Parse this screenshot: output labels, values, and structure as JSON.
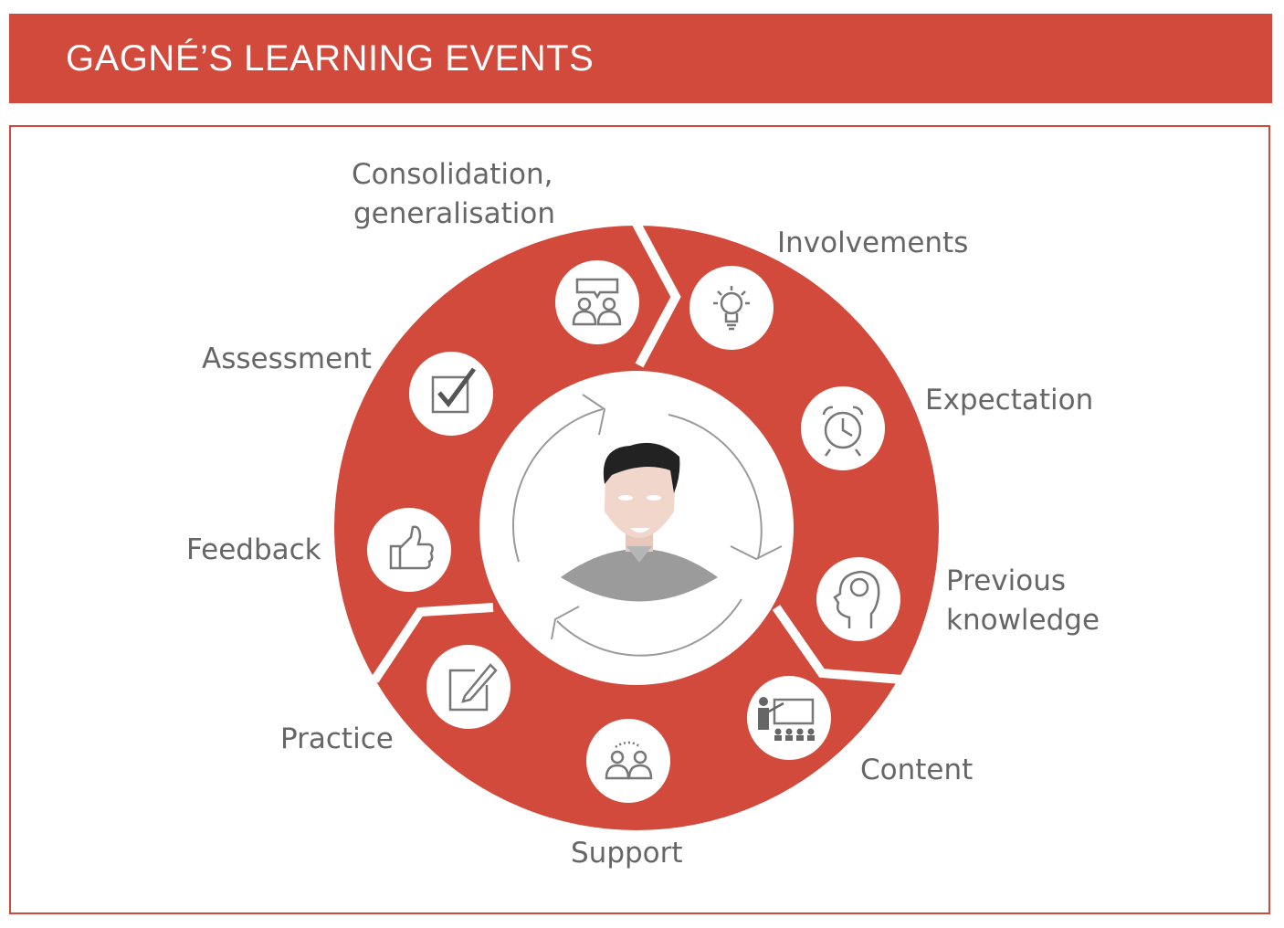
{
  "title": "GAGNÉ’S LEARNING EVENTS",
  "colors": {
    "accent": "#D24A3C",
    "label_text": "#666666",
    "icon": "#777777",
    "white": "#ffffff"
  },
  "events": [
    {
      "label": "Involvements",
      "icon": "lightbulb-icon"
    },
    {
      "label": "Expectation",
      "icon": "alarm-clock-icon"
    },
    {
      "label_lines": [
        "Previous",
        "knowledge"
      ],
      "icon": "head-brain-icon"
    },
    {
      "label": "Content",
      "icon": "teacher-presentation-icon"
    },
    {
      "label": "Support",
      "icon": "people-pair-icon"
    },
    {
      "label": "Practice",
      "icon": "edit-note-icon"
    },
    {
      "label": "Feedback",
      "icon": "thumbs-up-icon"
    },
    {
      "label": "Assessment",
      "icon": "checkbox-icon"
    },
    {
      "label_lines": [
        "Consolidation,",
        "generalisation"
      ],
      "icon": "discussion-group-icon"
    }
  ],
  "center": {
    "icon": "learner-avatar-icon",
    "cycle": "circular-arrows-icon"
  }
}
